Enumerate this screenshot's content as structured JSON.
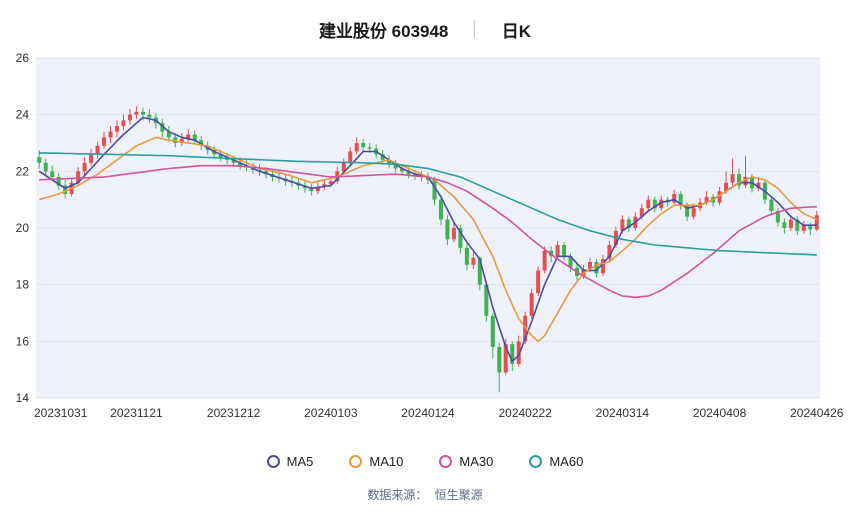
{
  "header": {
    "title_main": "建业股份 603948",
    "separator": "│",
    "period": "日K"
  },
  "footer": {
    "source_label": "数据来源：",
    "source_name": "恒生聚源"
  },
  "chart_data": {
    "type": "candlestick",
    "title": "建业股份 603948 日K",
    "ylim": [
      14,
      26
    ],
    "yticks": [
      26,
      24,
      22,
      20,
      18,
      16,
      14
    ],
    "x_tick_labels": [
      "20231031",
      "20231121",
      "20231212",
      "20240103",
      "20240124",
      "20240222",
      "20240314",
      "20240408",
      "20240426"
    ],
    "x_tick_indices": [
      0,
      15,
      30,
      45,
      60,
      75,
      90,
      105,
      120
    ],
    "grid": true,
    "legend_position": "bottom",
    "plot_bg": "#eef1f9",
    "grid_color": "#dfe3f0",
    "up_color": "#e35050",
    "down_color": "#3eb152",
    "candles": [
      [
        22.5,
        22.75,
        22.1,
        22.3
      ],
      [
        22.3,
        22.45,
        21.85,
        22.0
      ],
      [
        22.0,
        22.2,
        21.65,
        21.8
      ],
      [
        21.8,
        21.95,
        21.35,
        21.5
      ],
      [
        21.5,
        21.7,
        21.05,
        21.2
      ],
      [
        21.2,
        21.75,
        21.1,
        21.6
      ],
      [
        21.6,
        22.15,
        21.5,
        22.0
      ],
      [
        22.0,
        22.5,
        21.9,
        22.3
      ],
      [
        22.3,
        22.8,
        22.2,
        22.6
      ],
      [
        22.6,
        23.05,
        22.45,
        22.9
      ],
      [
        22.9,
        23.4,
        22.8,
        23.2
      ],
      [
        23.2,
        23.6,
        23.0,
        23.4
      ],
      [
        23.4,
        23.8,
        23.2,
        23.6
      ],
      [
        23.6,
        24.0,
        23.45,
        23.8
      ],
      [
        23.8,
        24.2,
        23.65,
        24.0
      ],
      [
        24.0,
        24.3,
        23.85,
        24.1
      ],
      [
        24.1,
        24.25,
        23.8,
        24.0
      ],
      [
        24.0,
        24.2,
        23.7,
        23.9
      ],
      [
        23.9,
        24.05,
        23.5,
        23.7
      ],
      [
        23.7,
        23.85,
        23.2,
        23.4
      ],
      [
        23.4,
        23.6,
        23.05,
        23.2
      ],
      [
        23.2,
        23.35,
        22.85,
        23.0
      ],
      [
        23.0,
        23.35,
        22.9,
        23.15
      ],
      [
        23.15,
        23.5,
        23.05,
        23.3
      ],
      [
        23.3,
        23.45,
        22.95,
        23.1
      ],
      [
        23.1,
        23.25,
        22.75,
        22.9
      ],
      [
        22.9,
        23.05,
        22.6,
        22.75
      ],
      [
        22.75,
        22.9,
        22.45,
        22.6
      ],
      [
        22.6,
        22.75,
        22.35,
        22.5
      ],
      [
        22.5,
        22.65,
        22.25,
        22.4
      ],
      [
        22.4,
        22.55,
        22.15,
        22.3
      ],
      [
        22.3,
        22.5,
        22.05,
        22.2
      ],
      [
        22.2,
        22.4,
        22.0,
        22.15
      ],
      [
        22.15,
        22.3,
        21.9,
        22.05
      ],
      [
        22.05,
        22.25,
        21.85,
        22.0
      ],
      [
        22.0,
        22.15,
        21.75,
        21.9
      ],
      [
        21.9,
        22.05,
        21.65,
        21.8
      ],
      [
        21.8,
        22.0,
        21.6,
        21.75
      ],
      [
        21.75,
        21.9,
        21.5,
        21.65
      ],
      [
        21.65,
        21.8,
        21.45,
        21.6
      ],
      [
        21.6,
        21.75,
        21.35,
        21.5
      ],
      [
        21.5,
        21.65,
        21.25,
        21.4
      ],
      [
        21.4,
        21.55,
        21.15,
        21.3
      ],
      [
        21.3,
        21.6,
        21.2,
        21.45
      ],
      [
        21.45,
        21.7,
        21.35,
        21.55
      ],
      [
        21.55,
        21.8,
        21.45,
        21.65
      ],
      [
        21.65,
        22.15,
        21.55,
        22.0
      ],
      [
        22.0,
        22.45,
        21.9,
        22.3
      ],
      [
        22.3,
        22.85,
        22.2,
        22.7
      ],
      [
        22.7,
        23.2,
        22.6,
        23.0
      ],
      [
        23.0,
        23.15,
        22.7,
        22.85
      ],
      [
        22.85,
        23.0,
        22.65,
        22.8
      ],
      [
        22.8,
        22.95,
        22.45,
        22.6
      ],
      [
        22.6,
        22.75,
        22.25,
        22.4
      ],
      [
        22.4,
        22.55,
        22.1,
        22.25
      ],
      [
        22.25,
        22.4,
        21.95,
        22.1
      ],
      [
        22.1,
        22.25,
        21.85,
        22.0
      ],
      [
        22.0,
        22.15,
        21.75,
        21.9
      ],
      [
        21.9,
        22.05,
        21.7,
        21.85
      ],
      [
        21.85,
        22.0,
        21.65,
        21.8
      ],
      [
        21.8,
        21.95,
        21.55,
        21.7
      ],
      [
        21.7,
        21.8,
        20.8,
        21.0
      ],
      [
        21.0,
        21.15,
        20.1,
        20.3
      ],
      [
        20.3,
        20.45,
        19.4,
        19.6
      ],
      [
        19.6,
        20.2,
        19.5,
        20.0
      ],
      [
        20.0,
        20.1,
        19.1,
        19.3
      ],
      [
        19.3,
        19.45,
        18.5,
        18.7
      ],
      [
        18.7,
        19.15,
        18.55,
        18.95
      ],
      [
        18.95,
        19.0,
        17.8,
        18.0
      ],
      [
        18.0,
        18.1,
        16.7,
        16.9
      ],
      [
        16.9,
        17.0,
        15.4,
        15.8
      ],
      [
        15.8,
        15.95,
        14.2,
        14.9
      ],
      [
        14.9,
        16.1,
        14.8,
        15.9
      ],
      [
        15.9,
        16.0,
        14.95,
        15.2
      ],
      [
        15.2,
        16.2,
        15.1,
        16.0
      ],
      [
        16.0,
        17.05,
        15.9,
        16.9
      ],
      [
        16.9,
        17.85,
        16.8,
        17.7
      ],
      [
        17.7,
        18.65,
        17.6,
        18.5
      ],
      [
        18.5,
        19.35,
        18.4,
        19.2
      ],
      [
        19.2,
        19.35,
        18.8,
        19.0
      ],
      [
        19.0,
        19.55,
        18.9,
        19.4
      ],
      [
        19.4,
        19.5,
        18.85,
        19.0
      ],
      [
        19.0,
        19.1,
        18.45,
        18.6
      ],
      [
        18.6,
        18.75,
        18.15,
        18.3
      ],
      [
        18.3,
        18.7,
        18.2,
        18.55
      ],
      [
        18.55,
        18.95,
        18.45,
        18.8
      ],
      [
        18.8,
        18.9,
        18.25,
        18.4
      ],
      [
        18.4,
        19.05,
        18.3,
        18.9
      ],
      [
        18.9,
        19.55,
        18.8,
        19.4
      ],
      [
        19.4,
        20.05,
        19.3,
        19.9
      ],
      [
        19.9,
        20.45,
        19.8,
        20.3
      ],
      [
        20.3,
        20.4,
        19.85,
        20.0
      ],
      [
        20.0,
        20.55,
        19.9,
        20.4
      ],
      [
        20.4,
        20.85,
        20.3,
        20.7
      ],
      [
        20.7,
        21.15,
        20.6,
        21.0
      ],
      [
        21.0,
        21.1,
        20.55,
        20.7
      ],
      [
        20.7,
        21.15,
        20.6,
        21.0
      ],
      [
        21.0,
        21.1,
        20.75,
        20.9
      ],
      [
        20.9,
        21.35,
        20.8,
        21.2
      ],
      [
        21.2,
        21.3,
        20.65,
        20.8
      ],
      [
        20.8,
        20.9,
        20.25,
        20.4
      ],
      [
        20.4,
        20.85,
        20.3,
        20.7
      ],
      [
        20.7,
        21.05,
        20.6,
        20.9
      ],
      [
        20.9,
        21.3,
        20.8,
        21.1
      ],
      [
        21.1,
        21.2,
        20.75,
        20.9
      ],
      [
        20.9,
        21.45,
        20.8,
        21.3
      ],
      [
        21.3,
        22.0,
        21.2,
        21.6
      ],
      [
        21.6,
        22.45,
        21.5,
        21.9
      ],
      [
        21.9,
        22.1,
        21.35,
        21.5
      ],
      [
        21.5,
        22.55,
        21.4,
        21.8
      ],
      [
        21.8,
        21.9,
        21.25,
        21.4
      ],
      [
        21.4,
        21.8,
        21.3,
        21.6
      ],
      [
        21.6,
        21.7,
        20.85,
        21.0
      ],
      [
        21.0,
        21.1,
        20.45,
        20.6
      ],
      [
        20.6,
        20.7,
        20.05,
        20.2
      ],
      [
        20.2,
        20.35,
        19.8,
        20.0
      ],
      [
        20.0,
        20.45,
        19.9,
        20.3
      ],
      [
        20.3,
        20.4,
        19.75,
        19.9
      ],
      [
        19.9,
        20.25,
        19.8,
        20.1
      ],
      [
        20.1,
        20.2,
        19.75,
        19.95
      ],
      [
        19.95,
        20.6,
        19.9,
        20.45
      ]
    ],
    "series": [
      {
        "name": "MA5",
        "color": "#4c4c9e",
        "values": [
          22.0,
          21.85,
          21.7,
          21.55,
          21.4,
          21.5,
          21.6,
          21.85,
          22.1,
          22.35,
          22.6,
          22.83,
          23.07,
          23.3,
          23.5,
          23.7,
          23.9,
          23.85,
          23.8,
          23.6,
          23.4,
          23.3,
          23.2,
          23.15,
          23.1,
          22.97,
          22.83,
          22.7,
          22.6,
          22.5,
          22.4,
          22.3,
          22.2,
          22.1,
          22.0,
          21.93,
          21.85,
          21.78,
          21.7,
          21.63,
          21.55,
          21.48,
          21.4,
          21.43,
          21.47,
          21.5,
          21.73,
          21.97,
          22.2,
          22.45,
          22.7,
          22.7,
          22.7,
          22.55,
          22.4,
          22.25,
          22.1,
          22.0,
          21.9,
          21.85,
          21.8,
          21.45,
          21.1,
          20.65,
          20.2,
          19.85,
          19.5,
          19.2,
          18.9,
          18.05,
          17.2,
          16.5,
          15.8,
          15.3,
          15.5,
          16.1,
          16.7,
          17.35,
          18.0,
          18.5,
          19.0,
          19.0,
          19.0,
          18.75,
          18.5,
          18.5,
          18.5,
          18.75,
          19.0,
          19.45,
          19.9,
          20.05,
          20.2,
          20.4,
          20.6,
          20.75,
          20.9,
          20.95,
          21.0,
          20.85,
          20.7,
          20.75,
          20.8,
          20.9,
          21.0,
          21.15,
          21.3,
          21.45,
          21.6,
          21.6,
          21.6,
          21.45,
          21.3,
          21.1,
          20.9,
          20.65,
          20.4,
          20.25,
          20.1,
          20.1,
          20.1
        ]
      },
      {
        "name": "MA10",
        "color": "#e79a41",
        "values": [
          21.0,
          21.07,
          21.13,
          21.2,
          21.3,
          21.4,
          21.5,
          21.63,
          21.77,
          21.9,
          22.07,
          22.23,
          22.4,
          22.57,
          22.73,
          22.9,
          23.0,
          23.1,
          23.2,
          23.15,
          23.1,
          23.07,
          23.03,
          23.0,
          22.97,
          22.93,
          22.9,
          22.8,
          22.7,
          22.6,
          22.5,
          22.4,
          22.3,
          22.2,
          22.1,
          22.05,
          22.0,
          21.95,
          21.9,
          21.83,
          21.75,
          21.68,
          21.6,
          21.65,
          21.7,
          21.75,
          21.8,
          21.9,
          22.0,
          22.1,
          22.2,
          22.25,
          22.3,
          22.35,
          22.4,
          22.3,
          22.2,
          22.1,
          22.0,
          21.9,
          21.8,
          21.7,
          21.5,
          21.3,
          21.1,
          20.83,
          20.57,
          20.3,
          19.87,
          19.43,
          19.0,
          18.4,
          17.8,
          17.3,
          16.8,
          16.5,
          16.2,
          16.0,
          16.2,
          16.6,
          17.0,
          17.4,
          17.8,
          18.1,
          18.4,
          18.55,
          18.7,
          18.75,
          18.8,
          19.0,
          19.2,
          19.4,
          19.6,
          19.85,
          20.1,
          20.3,
          20.5,
          20.65,
          20.8,
          20.8,
          20.8,
          20.8,
          20.8,
          20.9,
          21.0,
          21.15,
          21.3,
          21.45,
          21.6,
          21.7,
          21.8,
          21.75,
          21.7,
          21.55,
          21.4,
          21.15,
          20.9,
          20.7,
          20.5,
          20.4,
          20.3
        ]
      },
      {
        "name": "MA30",
        "color": "#d4549b",
        "values": [
          21.7,
          21.71,
          21.72,
          21.73,
          21.74,
          21.75,
          21.76,
          21.77,
          21.78,
          21.79,
          21.8,
          21.83,
          21.86,
          21.89,
          21.92,
          21.95,
          21.98,
          22.01,
          22.04,
          22.07,
          22.1,
          22.12,
          22.14,
          22.16,
          22.18,
          22.2,
          22.2,
          22.2,
          22.2,
          22.2,
          22.2,
          22.18,
          22.16,
          22.14,
          22.12,
          22.1,
          22.07,
          22.04,
          22.01,
          21.98,
          21.95,
          21.92,
          21.89,
          21.86,
          21.83,
          21.8,
          21.81,
          21.82,
          21.83,
          21.84,
          21.85,
          21.86,
          21.87,
          21.88,
          21.89,
          21.9,
          21.88,
          21.86,
          21.84,
          21.82,
          21.8,
          21.73,
          21.67,
          21.6,
          21.5,
          21.4,
          21.3,
          21.15,
          21.0,
          20.85,
          20.7,
          20.53,
          20.37,
          20.2,
          20.0,
          19.8,
          19.6,
          19.43,
          19.25,
          19.08,
          18.9,
          18.75,
          18.6,
          18.45,
          18.3,
          18.18,
          18.05,
          17.93,
          17.8,
          17.7,
          17.6,
          17.58,
          17.55,
          17.58,
          17.6,
          17.7,
          17.8,
          17.95,
          18.1,
          18.25,
          18.4,
          18.58,
          18.75,
          18.93,
          19.1,
          19.3,
          19.5,
          19.7,
          19.9,
          20.03,
          20.15,
          20.28,
          20.4,
          20.48,
          20.55,
          20.63,
          20.7,
          20.71,
          20.73,
          20.74,
          20.75
        ]
      },
      {
        "name": "MA60",
        "color": "#2b9e9e",
        "values": [
          22.65,
          22.65,
          22.64,
          22.64,
          22.63,
          22.63,
          22.62,
          22.62,
          22.61,
          22.61,
          22.6,
          22.6,
          22.59,
          22.59,
          22.58,
          22.58,
          22.57,
          22.57,
          22.56,
          22.56,
          22.55,
          22.54,
          22.53,
          22.52,
          22.51,
          22.5,
          22.49,
          22.48,
          22.47,
          22.46,
          22.45,
          22.44,
          22.43,
          22.42,
          22.41,
          22.4,
          22.39,
          22.38,
          22.37,
          22.36,
          22.35,
          22.35,
          22.34,
          22.34,
          22.33,
          22.33,
          22.32,
          22.32,
          22.31,
          22.31,
          22.3,
          22.29,
          22.28,
          22.27,
          22.26,
          22.25,
          22.22,
          22.19,
          22.16,
          22.13,
          22.1,
          22.04,
          21.98,
          21.92,
          21.86,
          21.8,
          21.7,
          21.6,
          21.5,
          21.4,
          21.3,
          21.2,
          21.1,
          21.0,
          20.9,
          20.8,
          20.7,
          20.6,
          20.5,
          20.4,
          20.3,
          20.22,
          20.14,
          20.06,
          19.98,
          19.9,
          19.84,
          19.78,
          19.72,
          19.66,
          19.6,
          19.56,
          19.52,
          19.48,
          19.44,
          19.4,
          19.38,
          19.36,
          19.34,
          19.32,
          19.3,
          19.28,
          19.26,
          19.24,
          19.22,
          19.2,
          19.19,
          19.18,
          19.17,
          19.16,
          19.15,
          19.14,
          19.13,
          19.12,
          19.11,
          19.1,
          19.09,
          19.08,
          19.07,
          19.06,
          19.05
        ]
      }
    ]
  }
}
